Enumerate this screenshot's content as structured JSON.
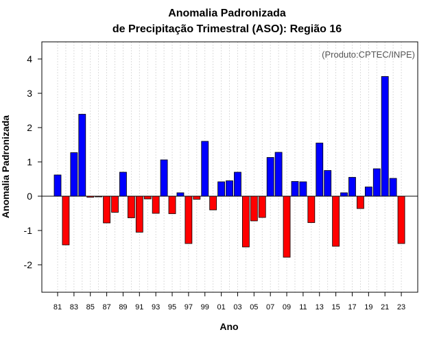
{
  "chart_data": {
    "type": "bar",
    "title": "Anomalia Padronizada",
    "subtitle": "de Precipitação Trimestral (ASO): Região 16",
    "xlabel": "Ano",
    "ylabel": "Anomalia Padronizada",
    "annotation": "(Produto:CPTEC/INPE)",
    "ylim": [
      -2.8,
      4.5
    ],
    "yticks": [
      -2,
      -1,
      0,
      1,
      2,
      3,
      4
    ],
    "positive_color": "#0000ff",
    "negative_color": "#ff0000",
    "grid": true,
    "categories": [
      "81",
      "82",
      "83",
      "84",
      "85",
      "86",
      "87",
      "88",
      "89",
      "90",
      "91",
      "92",
      "93",
      "94",
      "95",
      "96",
      "97",
      "98",
      "99",
      "00",
      "01",
      "02",
      "03",
      "04",
      "05",
      "06",
      "07",
      "08",
      "09",
      "10",
      "11",
      "12",
      "13",
      "14",
      "15",
      "16",
      "17",
      "18",
      "19",
      "20",
      "21",
      "22",
      "23"
    ],
    "xtick_labels": [
      "81",
      "83",
      "85",
      "87",
      "89",
      "91",
      "93",
      "95",
      "97",
      "99",
      "01",
      "03",
      "05",
      "07",
      "09",
      "11",
      "13",
      "15",
      "17",
      "19",
      "21",
      "23"
    ],
    "values": [
      0.62,
      -1.42,
      1.27,
      2.39,
      -0.03,
      -0.02,
      -0.78,
      -0.47,
      0.7,
      -0.63,
      -1.05,
      -0.08,
      -0.5,
      1.06,
      -0.51,
      0.1,
      -1.38,
      -0.09,
      1.6,
      -0.4,
      0.42,
      0.45,
      0.7,
      -1.48,
      -0.72,
      -0.62,
      1.13,
      1.28,
      -1.78,
      0.43,
      0.42,
      -0.77,
      1.55,
      0.75,
      -1.46,
      0.1,
      0.55,
      -0.36,
      0.27,
      0.8,
      3.49,
      0.52,
      -1.38
    ]
  }
}
